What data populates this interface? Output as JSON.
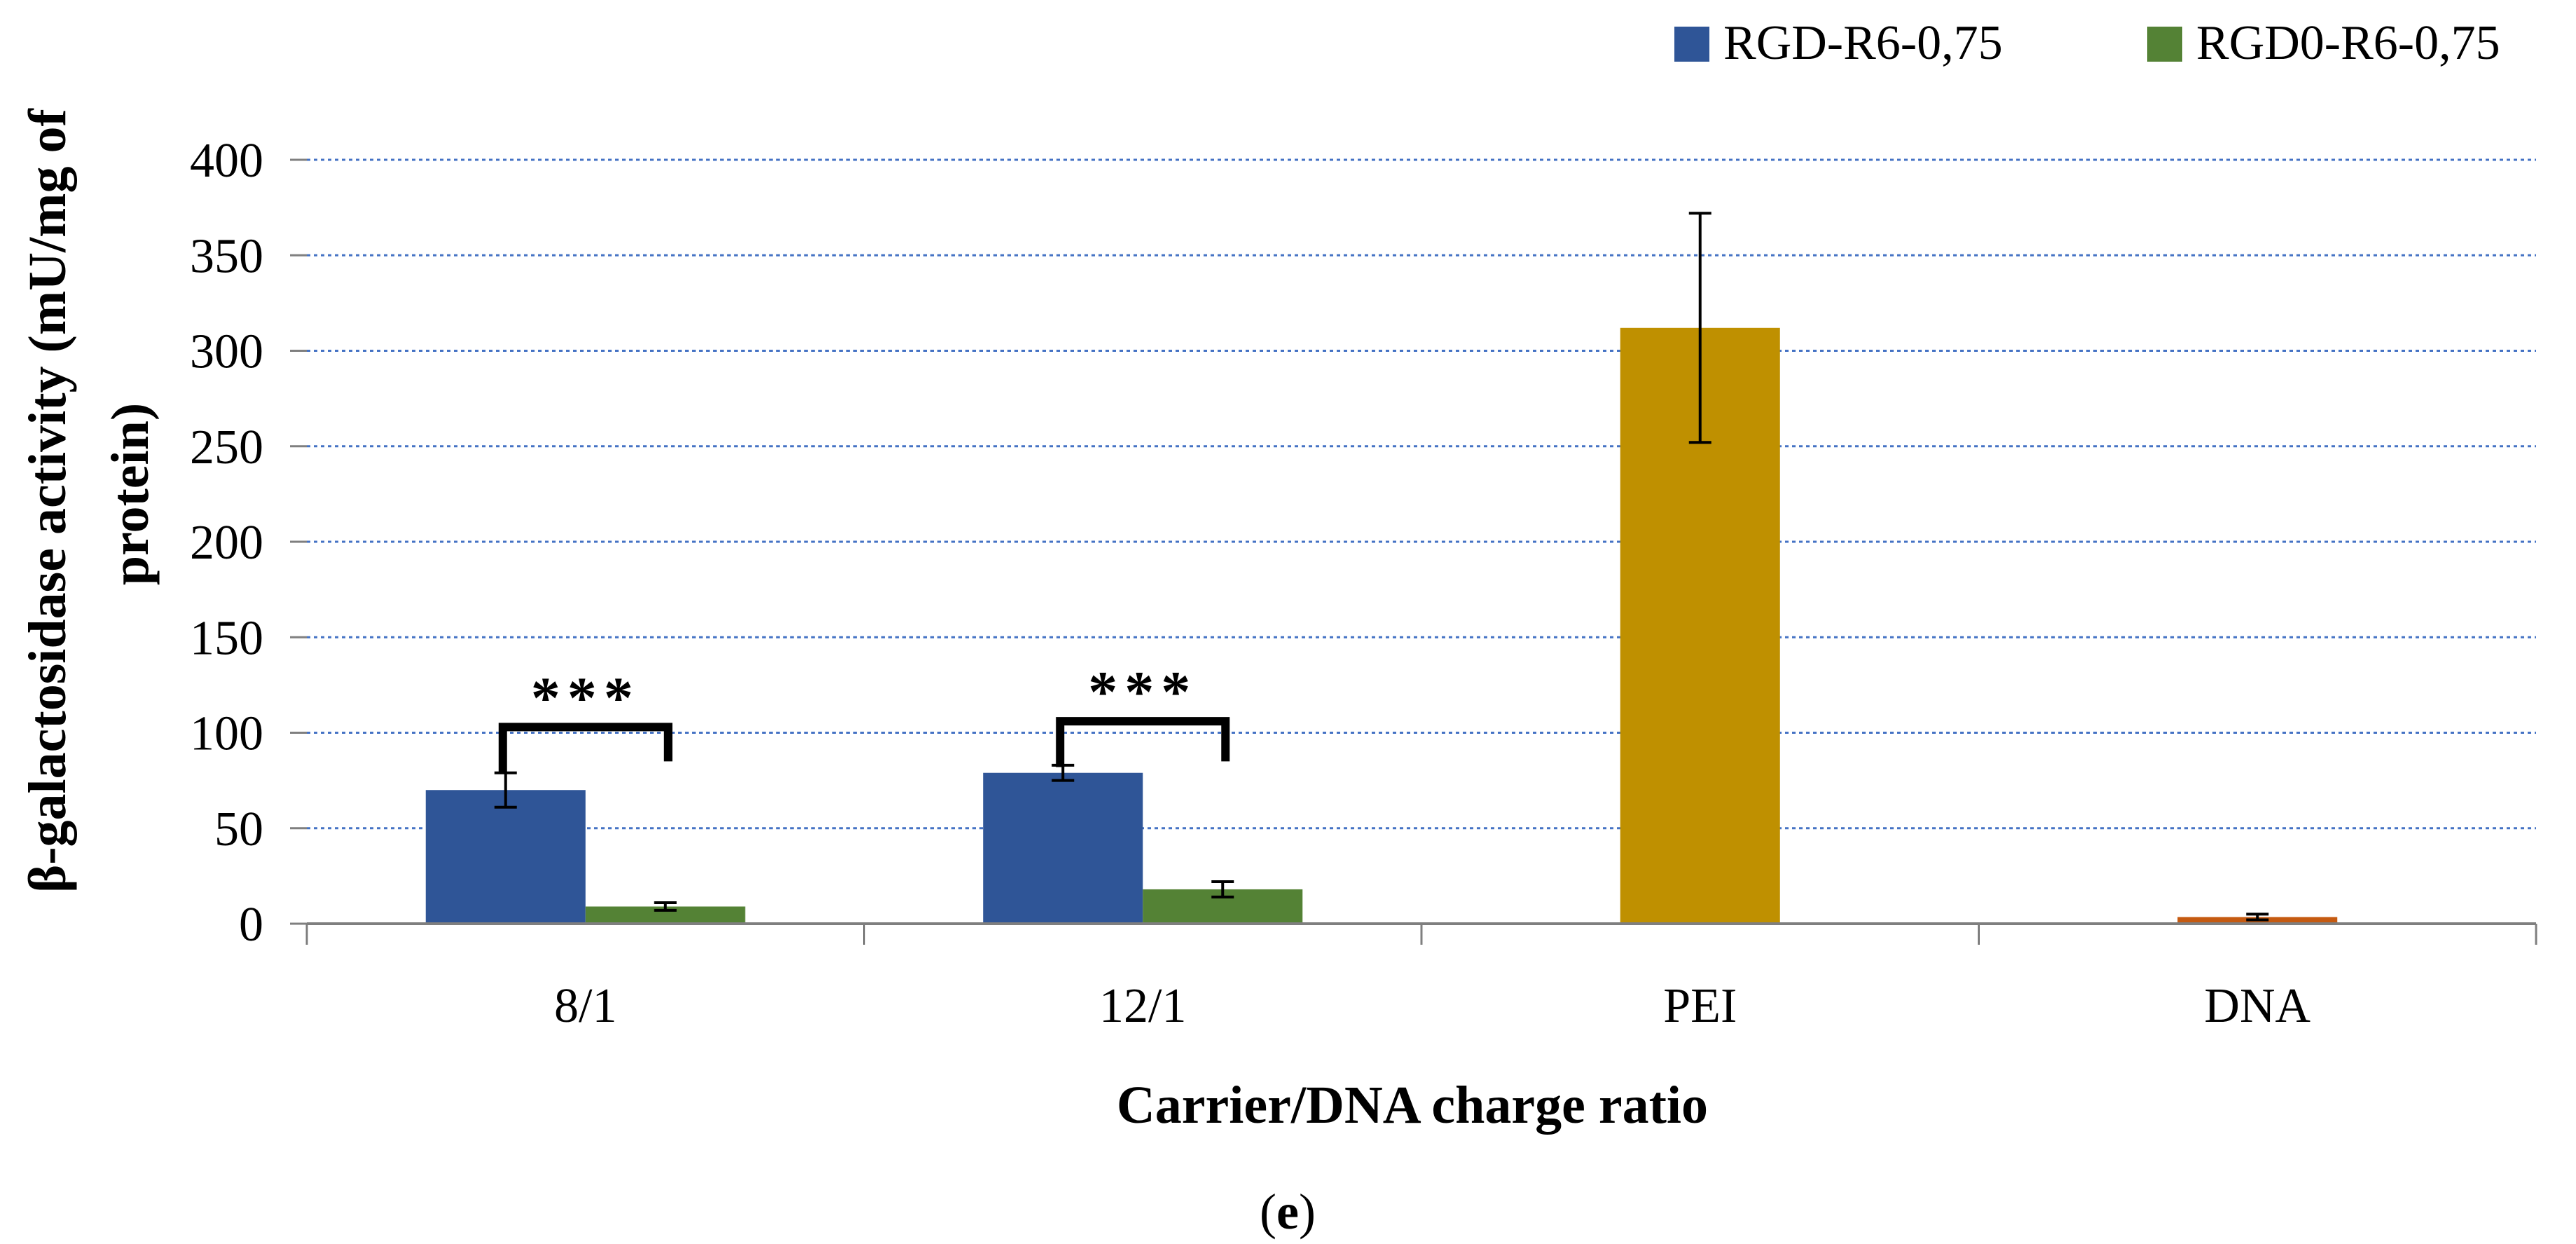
{
  "chart_data": {
    "type": "bar",
    "title": "",
    "xlabel": "Carrier/DNA charge ratio",
    "ylabel": "β-galactosidase activity (mU/mg of protein)",
    "ylabel_lines": [
      "β-galactosidase activity (mU/mg of",
      "protein)"
    ],
    "ylim": [
      0,
      400
    ],
    "yticks": [
      0,
      50,
      100,
      150,
      200,
      250,
      300,
      350,
      400
    ],
    "grid": true,
    "legend_position": "top-right",
    "categories": [
      "8/1",
      "12/1",
      "PEI",
      "DNA"
    ],
    "series": [
      {
        "name": "RGD-R6-0,75",
        "color": "#2F5597",
        "in_legend": true,
        "values": [
          70,
          79,
          null,
          null
        ],
        "errors": [
          9,
          4,
          null,
          null
        ]
      },
      {
        "name": "RGD0-R6-0,75",
        "color": "#548235",
        "in_legend": true,
        "values": [
          9,
          18,
          null,
          null
        ],
        "errors": [
          2,
          4,
          null,
          null
        ]
      },
      {
        "name": "PEI",
        "color": "#BF9000",
        "in_legend": false,
        "values": [
          null,
          null,
          312,
          null
        ],
        "errors": [
          null,
          null,
          60,
          null
        ]
      },
      {
        "name": "DNA",
        "color": "#C55A11",
        "in_legend": false,
        "values": [
          null,
          null,
          null,
          3.5
        ],
        "errors": [
          null,
          null,
          null,
          1.5
        ]
      }
    ],
    "annotations": [
      {
        "text": "***",
        "category": "8/1",
        "bracket_value": 103,
        "bracket_ends": [
          79,
          85
        ]
      },
      {
        "text": "***",
        "category": "12/1",
        "bracket_value": 106,
        "bracket_ends": [
          82,
          85
        ]
      }
    ],
    "panel_label": {
      "open": "(",
      "letter": "e",
      "close": ")"
    }
  }
}
